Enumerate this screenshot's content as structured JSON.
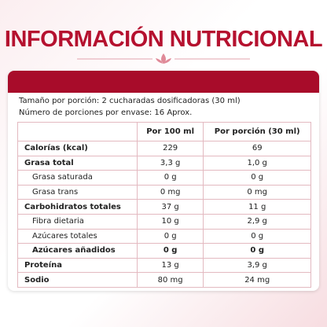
{
  "header": {
    "title": "INFORMACIÓN NUTRICIONAL"
  },
  "serving": {
    "size": "Tamaño por porción: 2 cucharadas dosificadoras  (30 ml)",
    "servings": "Número de porciones por envase:  16 Aprox."
  },
  "table": {
    "columns": [
      "Por 100 ml",
      "Por porción (30 ml)"
    ],
    "rows": [
      [
        "Calorías (kcal)",
        "229",
        "69"
      ],
      [
        "Grasa total",
        "3,3 g",
        "1,0 g"
      ],
      [
        "Grasa saturada",
        "0 g",
        "0 g"
      ],
      [
        "Grasa trans",
        "0 mg",
        "0 mg"
      ],
      [
        "Carbohidratos totales",
        "37 g",
        "11 g"
      ],
      [
        "Fibra dietaria",
        "10 g",
        "2,9 g"
      ],
      [
        "Azúcares totales",
        "0 g",
        "0 g"
      ],
      [
        "Azúcares añadidos",
        "0 g",
        "0 g"
      ],
      [
        "Proteína",
        "13 g",
        "3,9 g"
      ],
      [
        "Sodio",
        "80 mg",
        "24 mg"
      ]
    ]
  }
}
